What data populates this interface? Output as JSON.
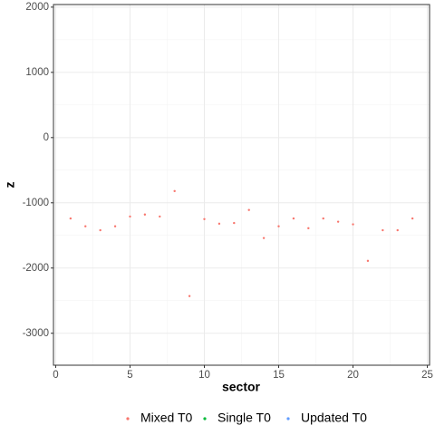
{
  "chart_data": {
    "type": "scatter",
    "x_label": "sector",
    "y_label": "z",
    "x": [
      1,
      2,
      3,
      4,
      5,
      6,
      7,
      8,
      9,
      10,
      11,
      12,
      13,
      14,
      15,
      16,
      17,
      18,
      19,
      20,
      21,
      22,
      23,
      24
    ],
    "series": [
      {
        "name": "Mixed T0",
        "color": "#F8766D",
        "values": [
          -1240,
          -1360,
          -1420,
          -1360,
          -1210,
          -1180,
          -1210,
          -820,
          -2430,
          -1250,
          -1320,
          -1310,
          -1110,
          -1540,
          -1360,
          -1240,
          -1390,
          -1240,
          -1290,
          -1330,
          -1890,
          -1420,
          -1420,
          -1240
        ]
      },
      {
        "name": "Single T0",
        "color": "#00BA38",
        "values": [
          null,
          null,
          null,
          null,
          null,
          null,
          null,
          null,
          null,
          null,
          null,
          null,
          null,
          null,
          null,
          null,
          null,
          null,
          null,
          null,
          null,
          null,
          null,
          null
        ]
      },
      {
        "name": "Updated T0",
        "color": "#619CFF",
        "values": [
          null,
          null,
          null,
          null,
          null,
          null,
          null,
          null,
          null,
          null,
          null,
          null,
          null,
          null,
          null,
          null,
          null,
          null,
          null,
          null,
          null,
          null,
          null,
          null
        ]
      }
    ],
    "xlim": [
      -0.15,
      25.15
    ],
    "xticks": [
      0,
      5,
      10,
      15,
      20,
      25
    ],
    "ylim": [
      -3490,
      2040
    ],
    "yticks": [
      -3000,
      -2000,
      -1000,
      0,
      1000,
      2000
    ],
    "grid": true,
    "legend_position": "bottom"
  }
}
